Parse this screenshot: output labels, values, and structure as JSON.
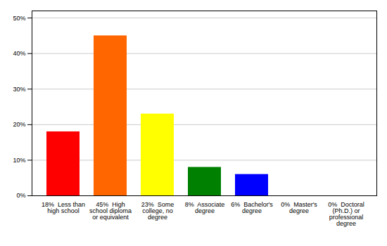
{
  "chart_data": {
    "type": "bar",
    "categories": [
      "18%  Less than\nhigh school",
      "45%  High\nschool diploma\nor equivalent",
      "23%  Some\ncollege, no\ndegree",
      "8%  Associate\ndegree",
      "6%  Bachelor's\ndegree",
      "0%  Master's\ndegree",
      "0%  Doctoral\n(Ph.D.) or\nprofessional\ndegree"
    ],
    "values": [
      18,
      45,
      23,
      8,
      6,
      0,
      0
    ],
    "colors": [
      "#ff0000",
      "#ff6600",
      "#ffff00",
      "#008000",
      "#0000ff",
      "#9933cc",
      "#ff33cc"
    ],
    "ylim": [
      0,
      52
    ],
    "yticks": [
      {
        "value": 0,
        "label": "0%"
      },
      {
        "value": 10,
        "label": "10%"
      },
      {
        "value": 20,
        "label": "20%"
      },
      {
        "value": 30,
        "label": "30%"
      },
      {
        "value": 40,
        "label": "40%"
      },
      {
        "value": 50,
        "label": "50%"
      }
    ],
    "grid": true
  }
}
